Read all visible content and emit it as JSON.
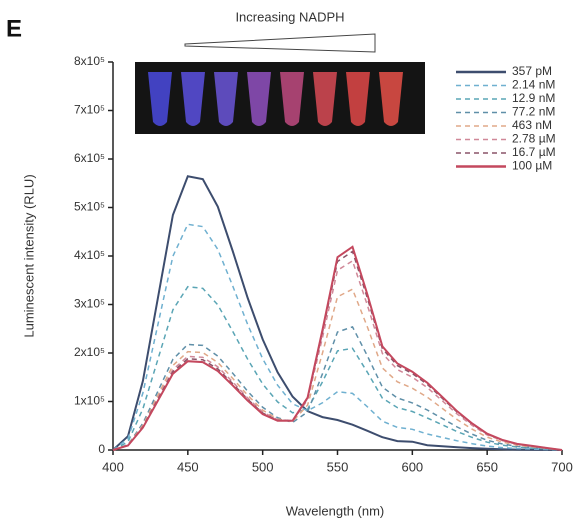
{
  "chart_data": {
    "type": "line",
    "panel_label": "E",
    "annotation": "Increasing NADPH",
    "x_label": "Wavelength (nm)",
    "y_label": "Luminescent intensity (RLU)",
    "x": [
      400,
      410,
      420,
      430,
      440,
      450,
      460,
      470,
      480,
      490,
      500,
      510,
      520,
      530,
      540,
      550,
      560,
      570,
      580,
      590,
      600,
      610,
      620,
      630,
      640,
      650,
      660,
      670,
      680,
      690,
      700
    ],
    "xlim": [
      400,
      700
    ],
    "xticks": [
      400,
      450,
      500,
      550,
      600,
      650,
      700
    ],
    "ylim": [
      0,
      800000
    ],
    "yticks": [
      0,
      {
        "value": 100000,
        "label": "1x10⁵"
      },
      {
        "value": 200000,
        "label": "2x10⁵"
      },
      {
        "value": 300000,
        "label": "3x10⁵"
      },
      {
        "value": 400000,
        "label": "4x10⁵"
      },
      {
        "value": 500000,
        "label": "5x10⁵"
      },
      {
        "value": 600000,
        "label": "6x10⁵"
      },
      {
        "value": 700000,
        "label": "7x10⁵"
      },
      {
        "value": 800000,
        "label": "8x10⁵"
      }
    ],
    "series": [
      {
        "name": "357 pM",
        "color": "#3d4d6e",
        "dashed": false,
        "values": [
          0,
          28500,
          142500,
          313500,
          484500,
          564300,
          558600,
          501600,
          410400,
          313500,
          228000,
          160200,
          110100,
          80100,
          67800,
          61800,
          52200,
          39600,
          26400,
          18300,
          17100,
          9900,
          7800,
          5700,
          3900,
          2400,
          1500,
          900,
          600,
          300,
          0
        ]
      },
      {
        "name": "2.14 nM",
        "color": "#6fb0d0",
        "dashed": true,
        "values": [
          0,
          23500,
          117500,
          258500,
          399500,
          465300,
          460600,
          413600,
          338400,
          258500,
          188000,
          133600,
          95300,
          81100,
          97300,
          120200,
          116800,
          89100,
          59400,
          46700,
          42700,
          33000,
          26000,
          19000,
          13000,
          8000,
          5000,
          3000,
          2000,
          1000,
          0
        ]
      },
      {
        "name": "12.9 nM",
        "color": "#5aa5b5",
        "dashed": true,
        "values": [
          0,
          17000,
          85000,
          187000,
          289000,
          336600,
          333200,
          299200,
          244800,
          187000,
          136000,
          99200,
          76600,
          84200,
          140600,
          204400,
          209600,
          160200,
          106800,
          87400,
          79400,
          66000,
          52000,
          38000,
          26000,
          16000,
          10000,
          6000,
          4000,
          2000,
          0
        ]
      },
      {
        "name": "77.2 nM",
        "color": "#5f8fa8",
        "dashed": true,
        "values": [
          0,
          11000,
          55000,
          121000,
          187000,
          217800,
          215600,
          193600,
          158400,
          121000,
          88000,
          66600,
          56800,
          78600,
          157300,
          243200,
          253800,
          194100,
          129400,
          107200,
          97200,
          82500,
          65000,
          47500,
          32500,
          20000,
          12500,
          7500,
          5000,
          2500,
          0
        ]
      },
      {
        "name": "463 nM",
        "color": "#e0a888",
        "dashed": true,
        "values": [
          0,
          10250,
          51250,
          112750,
          174250,
          202950,
          200900,
          180400,
          147600,
          112750,
          82000,
          64000,
          58750,
          92650,
          199950,
          315900,
          331600,
          253650,
          169100,
          140650,
          127450,
          108900,
          85800,
          62700,
          42900,
          26400,
          16500,
          9900,
          6600,
          3300,
          0
        ]
      },
      {
        "name": "2.78 µM",
        "color": "#d08898",
        "dashed": true,
        "values": [
          0,
          9750,
          48750,
          107250,
          165750,
          193050,
          191100,
          171600,
          140400,
          107250,
          78000,
          62400,
          60450,
          103350,
          232050,
          370500,
          390000,
          298350,
          198900,
          165750,
          150150,
          128700,
          101400,
          74100,
          50700,
          31200,
          19500,
          11700,
          7800,
          3900,
          0
        ]
      },
      {
        "name": "16.7 µM",
        "color": "#8a5468",
        "dashed": true,
        "values": [
          0,
          9500,
          47500,
          104500,
          161500,
          188100,
          186200,
          167200,
          136800,
          104500,
          76000,
          61400,
          60700,
          106700,
          242600,
          388600,
          409400,
          313200,
          208800,
          174100,
          157700,
          135300,
          106600,
          77900,
          53300,
          32800,
          20500,
          12300,
          8200,
          4100,
          0
        ]
      },
      {
        "name": "100 µM",
        "color": "#c4485e",
        "dashed": false,
        "values": [
          0,
          9250,
          46250,
          101750,
          157250,
          183150,
          181300,
          162800,
          133200,
          101750,
          74000,
          60200,
          60350,
          108050,
          247650,
          397500,
          419000,
          320550,
          213700,
          178250,
          161450,
          138600,
          109200,
          79800,
          54600,
          33600,
          21000,
          12600,
          8400,
          4200,
          0
        ]
      }
    ]
  }
}
